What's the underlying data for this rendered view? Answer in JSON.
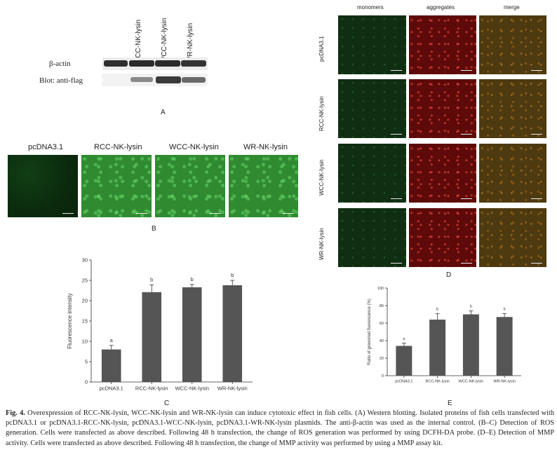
{
  "panelA": {
    "lanes": [
      "RCC-NK-lysin",
      "WCC-NK-lysin",
      "WR-NK-lysin"
    ],
    "rows": [
      "β-actin",
      "Blot: anti-flag"
    ],
    "label": "A"
  },
  "panelB": {
    "titles": [
      "pcDNA3.1",
      "RCC-NK-lysin",
      "WCC-NK-lysin",
      "WR-NK-lysin"
    ],
    "label": "B"
  },
  "panelD": {
    "columns": [
      "monomers",
      "aggregates",
      "merge"
    ],
    "rows": [
      "pcDNA3.1",
      "RCC-NK-lysin",
      "WCC-NK-lysin",
      "WR-NK-lysin"
    ],
    "label": "D"
  },
  "panelC_label": "C",
  "panelE_label": "E",
  "chart_data": [
    {
      "type": "bar",
      "categories": [
        "pcDNA3.1",
        "RCC-NK-lysin",
        "WCC-NK-lysin",
        "WR-NK-lysin"
      ],
      "values": [
        8.0,
        22.1,
        23.3,
        23.8
      ],
      "errors": [
        1.0,
        1.8,
        0.7,
        1.2
      ],
      "annotations": [
        "a",
        "b",
        "b",
        "b"
      ],
      "ylabel": "Fluorescence intensity",
      "ylim": [
        0,
        30
      ],
      "yticks": [
        0,
        5,
        10,
        15,
        20,
        25,
        30
      ],
      "bar_color": "#555555"
    },
    {
      "type": "bar",
      "categories": [
        "pcDNA3.1",
        "RCC-NK-lysin",
        "WCC-NK-lysin",
        "WR-NK-lysin"
      ],
      "values": [
        34,
        64,
        70,
        67
      ],
      "errors": [
        3,
        7,
        4,
        4
      ],
      "annotations": [
        "a",
        "b",
        "b",
        "b"
      ],
      "ylabel": "Ratio of green/red fluorescence (%)",
      "ylim": [
        0,
        100
      ],
      "yticks": [
        0,
        20,
        40,
        60,
        80,
        100
      ],
      "bar_color": "#555555"
    }
  ],
  "caption": {
    "fig": "Fig. 4.",
    "text": "Overexpression of RCC-NK-lysin, WCC-NK-lysin and WR-NK-lysin can induce cytotoxic effect in fish cells. (A) Western blotting. Isolated proteins of fish cells transfected with pcDNA3.1 or pcDNA3.1-RCC-NK-lysin, pcDNA3.1-WCC-NK-lysin, pcDNA3.1-WR-NK-lysin plasmids. The anti-β-actin was used as the internal control. (B–C) Detection of ROS generation. Cells were transfected as above described. Following 48 h transfection, the change of ROS generation was performed by using DCFH-DA probe. (D–E) Detection of MMP activity. Cells were transfected as above described. Following 48 h transfection, the change of MMP activity was performed by using a MMP assay kit."
  }
}
